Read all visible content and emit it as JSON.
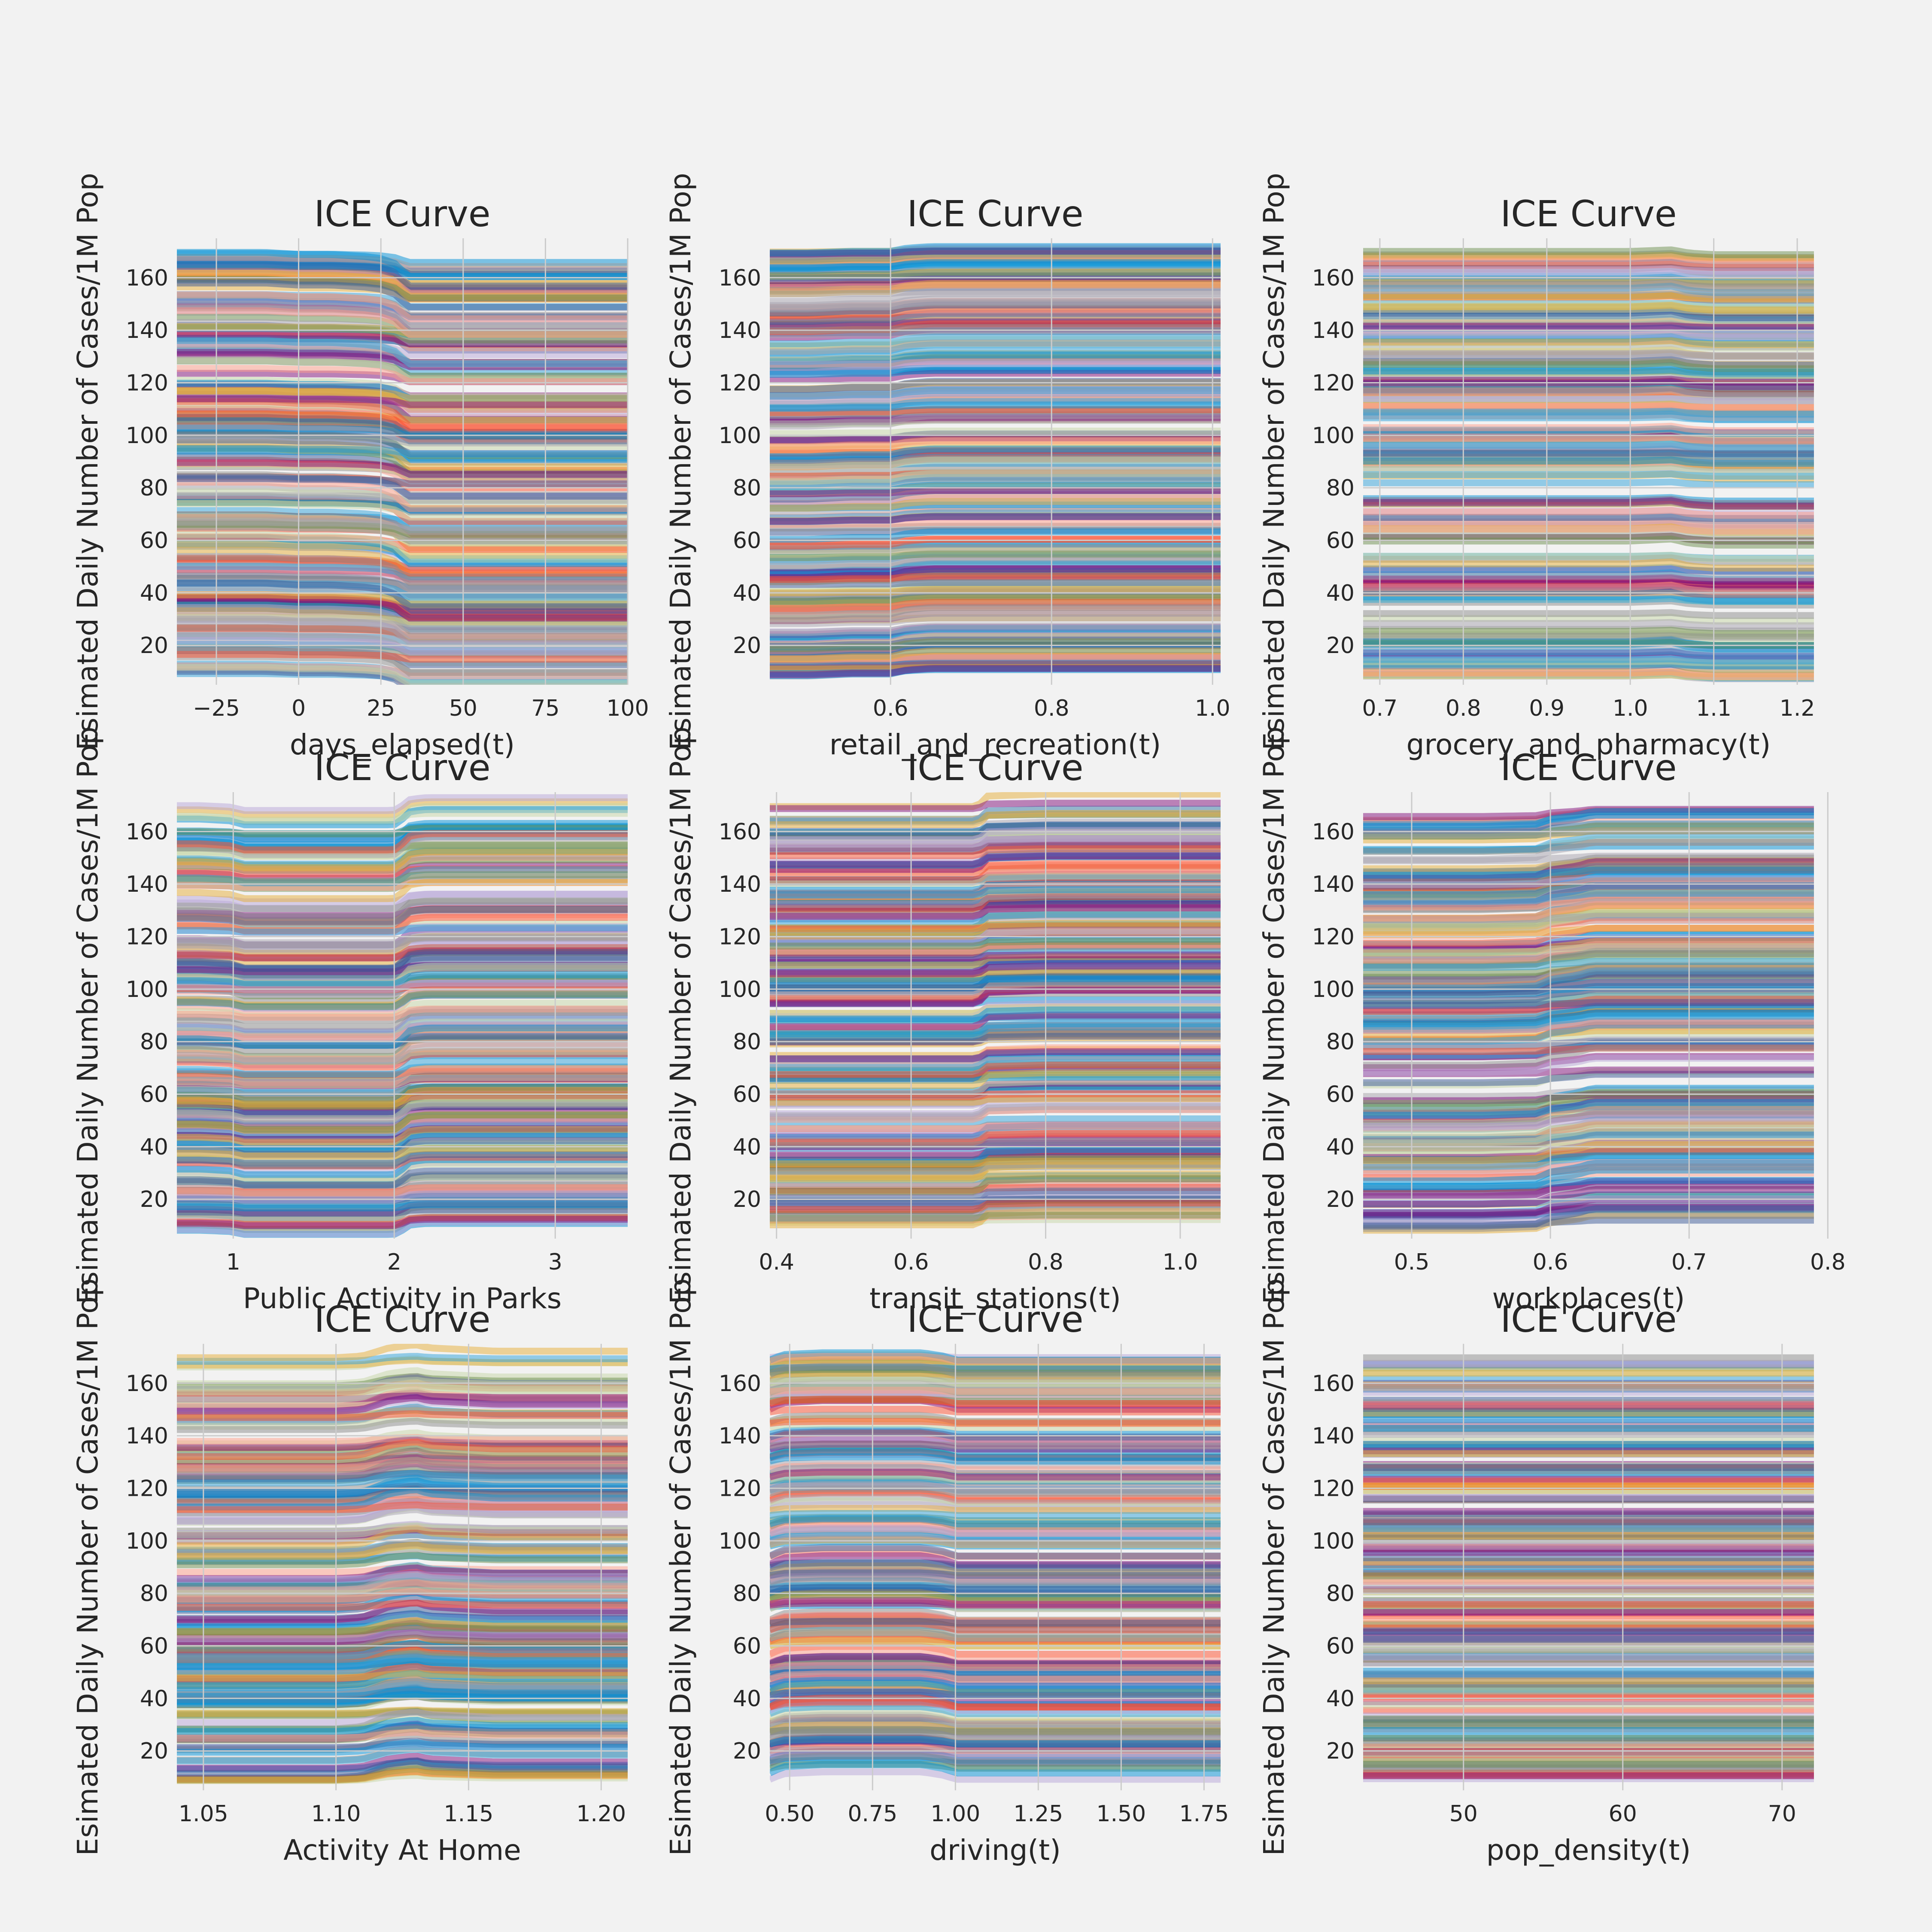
{
  "figure": {
    "background": "#f2f2f2",
    "axes_background": "#f2f2f2",
    "grid_color": "#cbcbcb"
  },
  "palette": [
    "#008fd5",
    "#fc4f30",
    "#e5ae38",
    "#6d904f",
    "#8b8b8b",
    "#810f7c",
    "#30a2da",
    "#ff9e8a",
    "#c5d5a6",
    "#b7a6d8",
    "#a6a2ad",
    "#3b5998"
  ],
  "chart_data": [
    {
      "type": "line",
      "title": "ICE Curve",
      "xlabel": "days_elapsed(t)",
      "ylabel": "Esimated Daily Number of Cases/1M Pop",
      "xlim": [
        -37,
        100
      ],
      "ylim": [
        5,
        175
      ],
      "xticks": [
        -25,
        0,
        25,
        50,
        75,
        100
      ],
      "xticklabels": [
        "−25",
        "0",
        "25",
        "50",
        "75",
        "100"
      ],
      "yticks": [
        20,
        40,
        60,
        80,
        100,
        120,
        140,
        160
      ],
      "yticklabels": [
        "20",
        "40",
        "60",
        "80",
        "100",
        "120",
        "140",
        "160"
      ],
      "x": [
        -37,
        -10,
        0,
        10,
        20,
        25,
        30,
        33,
        40,
        60,
        80,
        100
      ],
      "ice_effect": [
        0,
        0,
        -0.5,
        -0.5,
        -1,
        -1.5,
        -3,
        -6,
        -6,
        -6,
        -6,
        -6
      ],
      "y_range": [
        8,
        170
      ],
      "n_series": 220
    },
    {
      "type": "line",
      "title": "ICE Curve",
      "xlabel": "retail_and_recreation(t)",
      "ylabel": "Esimated Daily Number of Cases/1M Pop",
      "xlim": [
        0.45,
        1.01
      ],
      "ylim": [
        5,
        175
      ],
      "xticks": [
        0.6,
        0.8,
        1.0
      ],
      "xticklabels": [
        "0.6",
        "0.8",
        "1.0"
      ],
      "yticks": [
        20,
        40,
        60,
        80,
        100,
        120,
        140,
        160
      ],
      "yticklabels": [
        "20",
        "40",
        "60",
        "80",
        "100",
        "120",
        "140",
        "160"
      ],
      "x": [
        0.45,
        0.5,
        0.55,
        0.6,
        0.62,
        0.65,
        0.7,
        0.8,
        0.9,
        1.01
      ],
      "ice_effect": [
        0,
        0,
        0.5,
        0.5,
        1.5,
        2,
        2,
        2,
        2,
        2
      ],
      "y_range": [
        8,
        170
      ],
      "n_series": 220
    },
    {
      "type": "line",
      "title": "ICE Curve",
      "xlabel": "grocery_and_pharmacy(t)",
      "ylabel": "Esimated Daily Number of Cases/1M Pop",
      "xlim": [
        0.68,
        1.22
      ],
      "ylim": [
        5,
        175
      ],
      "xticks": [
        0.7,
        0.8,
        0.9,
        1.0,
        1.1,
        1.2
      ],
      "xticklabels": [
        "0.7",
        "0.8",
        "0.9",
        "1.0",
        "1.1",
        "1.2"
      ],
      "yticks": [
        20,
        40,
        60,
        80,
        100,
        120,
        140,
        160
      ],
      "yticklabels": [
        "20",
        "40",
        "60",
        "80",
        "100",
        "120",
        "140",
        "160"
      ],
      "x": [
        0.68,
        0.8,
        0.9,
        1.0,
        1.05,
        1.07,
        1.1,
        1.22
      ],
      "ice_effect": [
        0,
        0,
        0,
        0,
        0.5,
        -0.5,
        -1,
        -1
      ],
      "y_range": [
        8,
        170
      ],
      "n_series": 220
    },
    {
      "type": "line",
      "title": "ICE Curve",
      "xlabel": "Public Activity in Parks",
      "ylabel": "Esimated Daily Number of Cases/1M Pop",
      "xlim": [
        0.65,
        3.45
      ],
      "ylim": [
        5,
        175
      ],
      "xticks": [
        1,
        2,
        3
      ],
      "xticklabels": [
        "1",
        "2",
        "3"
      ],
      "yticks": [
        20,
        40,
        60,
        80,
        100,
        120,
        140,
        160
      ],
      "yticklabels": [
        "20",
        "40",
        "60",
        "80",
        "100",
        "120",
        "140",
        "160"
      ],
      "x": [
        0.65,
        0.8,
        1.0,
        1.05,
        1.5,
        2.0,
        2.05,
        2.1,
        2.2,
        2.5,
        3.45
      ],
      "ice_effect": [
        0,
        0,
        -0.5,
        -1.5,
        -1.5,
        -1.5,
        0,
        2,
        2.5,
        2.5,
        2.5
      ],
      "y_range": [
        8,
        170
      ],
      "n_series": 220
    },
    {
      "type": "line",
      "title": "ICE Curve",
      "xlabel": "transit_stations(t)",
      "ylabel": "Esimated Daily Number of Cases/1M Pop",
      "xlim": [
        0.39,
        1.06
      ],
      "ylim": [
        5,
        175
      ],
      "xticks": [
        0.4,
        0.6,
        0.8,
        1.0
      ],
      "xticklabels": [
        "0.4",
        "0.6",
        "0.8",
        "1.0"
      ],
      "yticks": [
        20,
        40,
        60,
        80,
        100,
        120,
        140,
        160
      ],
      "yticklabels": [
        "20",
        "40",
        "60",
        "80",
        "100",
        "120",
        "140",
        "160"
      ],
      "x": [
        0.39,
        0.5,
        0.6,
        0.7,
        0.71,
        0.8,
        0.9,
        1.06
      ],
      "ice_effect": [
        0,
        0,
        0,
        0,
        2.5,
        3,
        3,
        3
      ],
      "y_range": [
        8,
        170
      ],
      "n_series": 220
    },
    {
      "type": "line",
      "title": "ICE Curve",
      "xlabel": "workplaces(t)",
      "ylabel": "Esimated Daily Number of Cases/1M Pop",
      "xlim": [
        0.465,
        0.79
      ],
      "ylim": [
        5,
        175
      ],
      "xticks": [
        0.5,
        0.6,
        0.7,
        0.8
      ],
      "xticklabels": [
        "0.5",
        "0.6",
        "0.7",
        "0.8"
      ],
      "yticks": [
        20,
        40,
        60,
        80,
        100,
        120,
        140,
        160
      ],
      "yticklabels": [
        "20",
        "40",
        "60",
        "80",
        "100",
        "120",
        "140",
        "160"
      ],
      "x": [
        0.465,
        0.55,
        0.59,
        0.6,
        0.62,
        0.63,
        0.7,
        0.79
      ],
      "ice_effect": [
        0,
        0,
        0.5,
        2,
        3,
        4,
        4,
        4
      ],
      "y_range": [
        8,
        170
      ],
      "n_series": 220
    },
    {
      "type": "line",
      "title": "ICE Curve",
      "xlabel": "Activity At Home",
      "ylabel": "Esimated Daily Number of Cases/1M Pop",
      "xlim": [
        1.04,
        1.21
      ],
      "ylim": [
        5,
        175
      ],
      "xticks": [
        1.05,
        1.1,
        1.15,
        1.2
      ],
      "xticklabels": [
        "1.05",
        "1.10",
        "1.15",
        "1.20"
      ],
      "yticks": [
        20,
        40,
        60,
        80,
        100,
        120,
        140,
        160
      ],
      "yticklabels": [
        "20",
        "40",
        "60",
        "80",
        "100",
        "120",
        "140",
        "160"
      ],
      "x": [
        1.04,
        1.1,
        1.11,
        1.12,
        1.13,
        1.135,
        1.16,
        1.21
      ],
      "ice_effect": [
        0,
        0,
        0.5,
        3,
        4,
        3,
        2,
        2
      ],
      "y_range": [
        8,
        170
      ],
      "n_series": 220
    },
    {
      "type": "line",
      "title": "ICE Curve",
      "xlabel": "driving(t)",
      "ylabel": "Esimated Daily Number of Cases/1M Pop",
      "xlim": [
        0.44,
        1.8
      ],
      "ylim": [
        5,
        175
      ],
      "xticks": [
        0.5,
        0.75,
        1.0,
        1.25,
        1.5,
        1.75
      ],
      "xticklabels": [
        "0.50",
        "0.75",
        "1.00",
        "1.25",
        "1.50",
        "1.75"
      ],
      "yticks": [
        20,
        40,
        60,
        80,
        100,
        120,
        140,
        160
      ],
      "yticklabels": [
        "20",
        "40",
        "60",
        "80",
        "100",
        "120",
        "140",
        "160"
      ],
      "x": [
        0.44,
        0.48,
        0.6,
        0.9,
        0.97,
        1.0,
        1.2,
        1.8
      ],
      "ice_effect": [
        0,
        1.5,
        2,
        2,
        1,
        0,
        0,
        0
      ],
      "y_range": [
        8,
        170
      ],
      "n_series": 220
    },
    {
      "type": "line",
      "title": "ICE Curve",
      "xlabel": "pop_density(t)",
      "ylabel": "Esimated Daily Number of Cases/1M Pop",
      "xlim": [
        43.7,
        72
      ],
      "ylim": [
        5,
        175
      ],
      "xticks": [
        50,
        60,
        70
      ],
      "xticklabels": [
        "50",
        "60",
        "70"
      ],
      "yticks": [
        20,
        40,
        60,
        80,
        100,
        120,
        140,
        160
      ],
      "yticklabels": [
        "20",
        "40",
        "60",
        "80",
        "100",
        "120",
        "140",
        "160"
      ],
      "x": [
        43.7,
        50,
        60,
        72
      ],
      "ice_effect": [
        0,
        0,
        0,
        0
      ],
      "y_range": [
        8,
        170
      ],
      "n_series": 220
    }
  ]
}
